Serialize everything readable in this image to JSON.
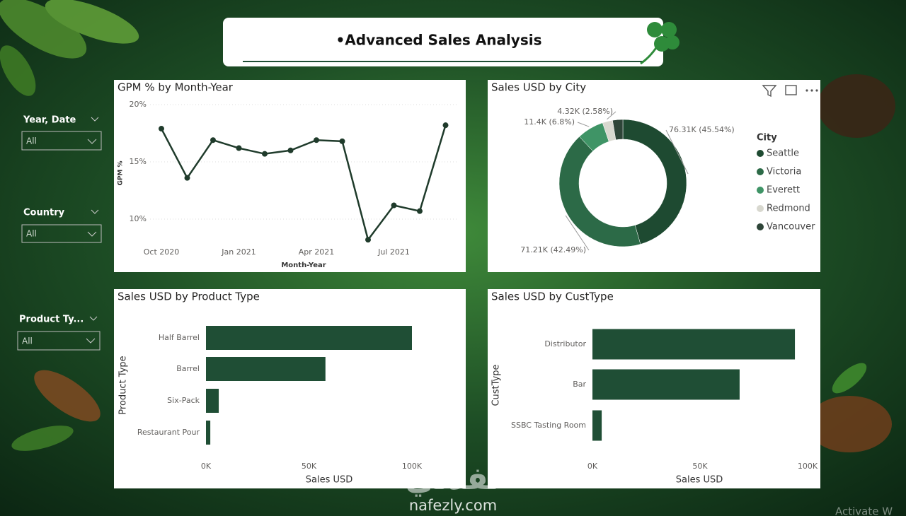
{
  "header": {
    "title": "•Advanced Sales Analysis"
  },
  "slicers": [
    {
      "label": "Year, Date",
      "value": "All"
    },
    {
      "label": "Country",
      "value": "All"
    },
    {
      "label": "Product Ty...",
      "value": "All"
    }
  ],
  "watermark": {
    "arabic": "نفذلي",
    "site": "nafezly.com"
  },
  "activation": "Activate W",
  "chart_data": [
    {
      "type": "line",
      "title": "GPM % by Month-Year",
      "x_label": "Month-Year",
      "y_label": "GPM %",
      "categories": [
        "Oct 2020",
        null,
        null,
        "Jan 2021",
        null,
        null,
        "Apr 2021",
        null,
        null,
        "Jul 2021",
        null,
        null
      ],
      "values": [
        17.9,
        13.6,
        16.9,
        16.2,
        15.7,
        16.0,
        16.9,
        16.8,
        8.2,
        11.2,
        10.7,
        18.2
      ],
      "color": "#1f3b2b",
      "ylim": [
        8,
        20
      ],
      "yticks": [
        {
          "value": 10,
          "label": "10%"
        },
        {
          "value": 15,
          "label": "15%"
        },
        {
          "value": 20,
          "label": "20%"
        }
      ],
      "grid": true
    },
    {
      "type": "donut",
      "title": "Sales USD by City",
      "legend_title": "City",
      "categories": [
        "Seattle",
        "Victoria",
        "Everett",
        "Redmond",
        "Vancouver"
      ],
      "values": [
        76.31,
        71.21,
        11.4,
        4.32,
        4.34
      ],
      "value_labels": [
        "76.31K (45.54%)",
        "71.21K (42.49%)",
        "11.4K (6.8%)",
        "4.32K (2.58%)",
        null
      ],
      "colors": [
        "#1e4a31",
        "#2c6a47",
        "#3f9466",
        "#d8d8cf",
        "#2e4538"
      ]
    },
    {
      "type": "bar",
      "orientation": "horizontal",
      "title": "Sales USD by Product Type",
      "x_label": "Sales USD",
      "y_label": "Product Type",
      "categories": [
        "Half Barrel",
        "Barrel",
        "Six-Pack",
        "Restaurant Pour"
      ],
      "values": [
        100,
        58,
        6.2,
        2.1
      ],
      "color": "#1f4e35",
      "xlim": [
        0,
        100
      ],
      "xticks": [
        {
          "value": 0,
          "label": "0K"
        },
        {
          "value": 50,
          "label": "50K"
        },
        {
          "value": 100,
          "label": "100K"
        }
      ]
    },
    {
      "type": "bar",
      "orientation": "horizontal",
      "title": "Sales USD by CustType",
      "x_label": "Sales USD",
      "y_label": "CustType",
      "categories": [
        "Distributor",
        "Bar",
        "SSBC Tasting Room"
      ],
      "values": [
        94.1,
        68.4,
        4.3
      ],
      "color": "#1f4e35",
      "xlim": [
        0,
        100
      ],
      "xticks": [
        {
          "value": 0,
          "label": "0K"
        },
        {
          "value": 50,
          "label": "50K"
        },
        {
          "value": 100,
          "label": "100K"
        }
      ]
    }
  ]
}
